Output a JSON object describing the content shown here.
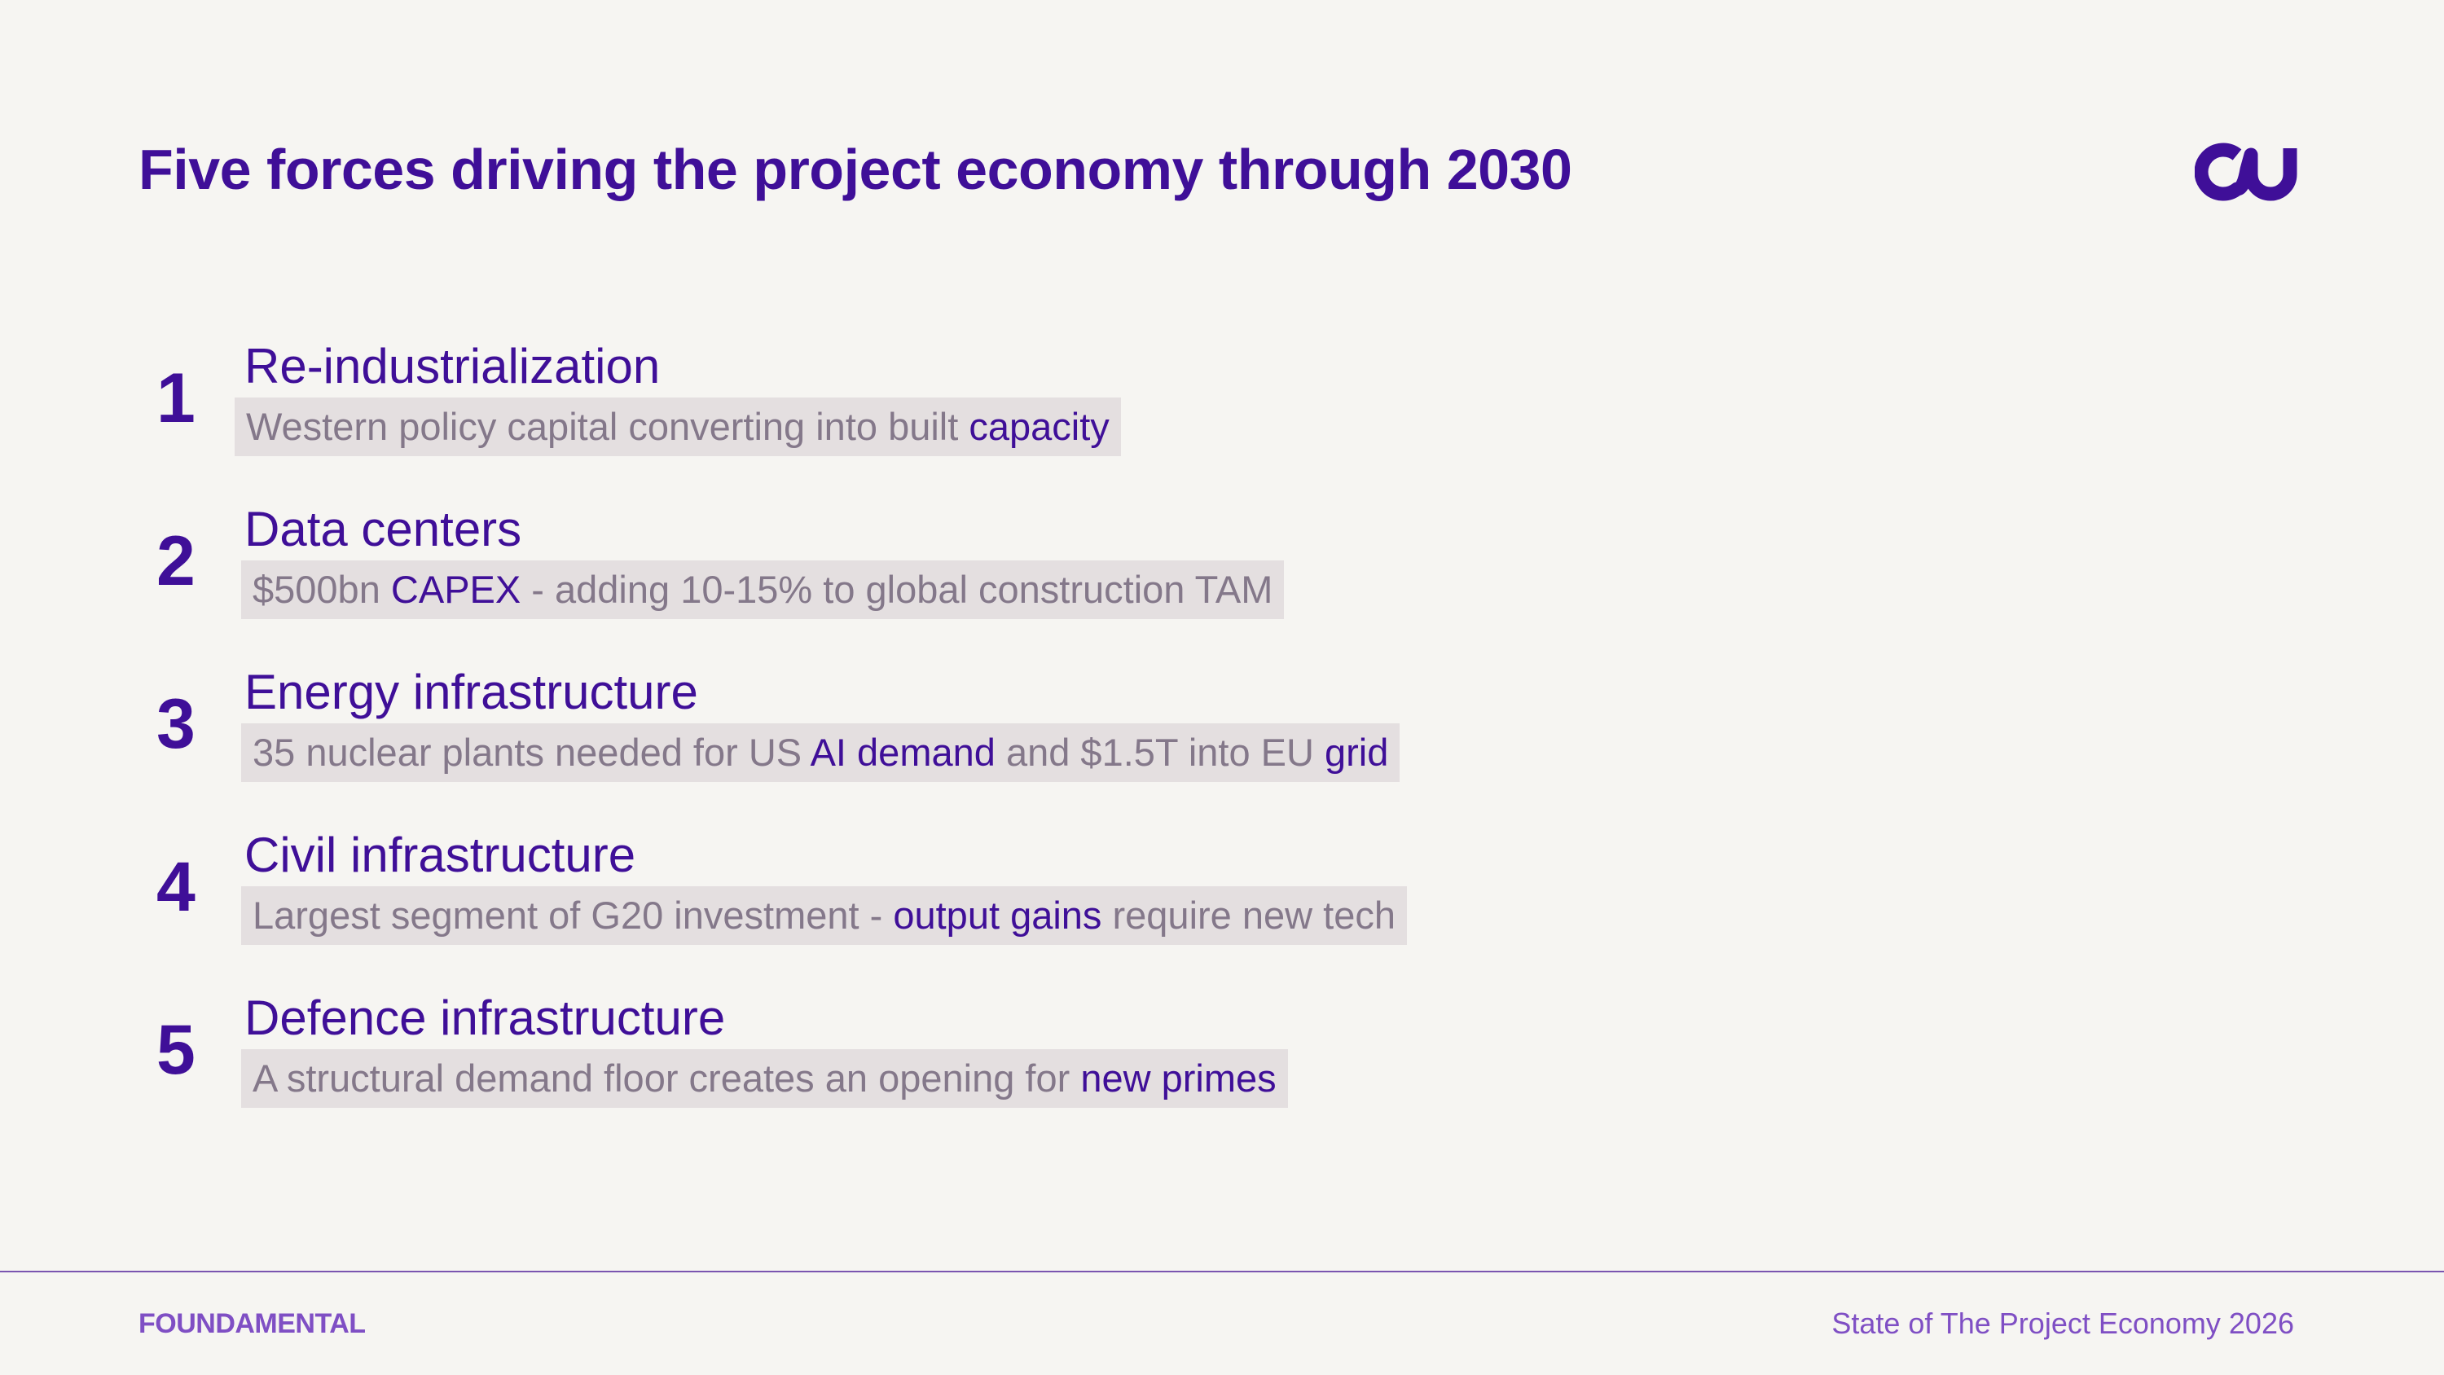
{
  "slide": {
    "title": "Five forces driving the project economy through 2030"
  },
  "logo": {
    "icon": "cu-mark-icon",
    "color": "#3f0f98"
  },
  "forces": [
    {
      "number": "1",
      "heading": "Re-industrialization",
      "desc": {
        "pre": "Western policy capital converting into built ",
        "hl1": "capacity",
        "mid": "",
        "hl2": "",
        "post": ""
      }
    },
    {
      "number": "2",
      "heading": "Data centers",
      "desc": {
        "pre": "$500bn ",
        "hl1": "CAPEX",
        "mid": " - adding 10-15% to global construction TAM",
        "hl2": "",
        "post": ""
      }
    },
    {
      "number": "3",
      "heading": "Energy infrastructure",
      "desc": {
        "pre": "35 nuclear plants needed for US ",
        "hl1": "AI demand",
        "mid": " and $1.5T into EU ",
        "hl2": "grid",
        "post": ""
      }
    },
    {
      "number": "4",
      "heading": "Civil infrastructure",
      "desc": {
        "pre": "Largest segment of G20 investment - ",
        "hl1": "output gains",
        "mid": " require new tech",
        "hl2": "",
        "post": ""
      }
    },
    {
      "number": "5",
      "heading": "Defence infrastructure",
      "desc": {
        "pre": "A structural demand floor creates an opening for ",
        "hl1": "new primes",
        "mid": "",
        "hl2": "",
        "post": ""
      }
    }
  ],
  "footer": {
    "brand": "FOUNDAMENTAL",
    "report": "State of The Project Economy 2026"
  },
  "colors": {
    "background": "#f6f5f2",
    "accent": "#3f0f98",
    "muted_text": "#84788a",
    "highlight_box": "#e4dfe0",
    "footer_accent": "#7f4fc4"
  }
}
